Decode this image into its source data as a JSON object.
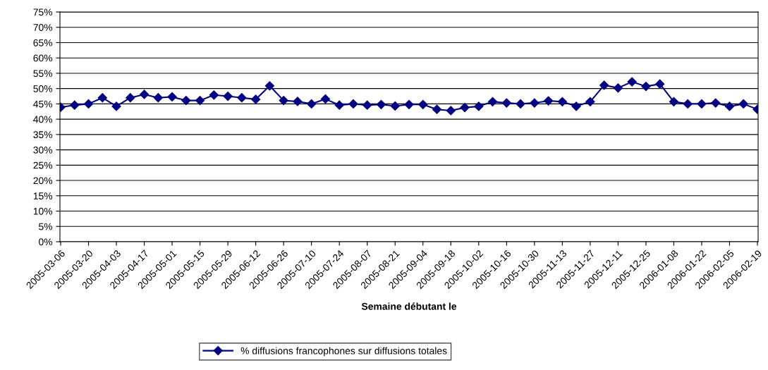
{
  "chart_data": {
    "type": "line",
    "xlabel": "Semaine débutant le",
    "categories": [
      "2005-03-06",
      null,
      "2005-03-20",
      null,
      "2005-04-03",
      null,
      "2005-04-17",
      null,
      "2005-05-01",
      null,
      "2005-05-15",
      null,
      "2005-05-29",
      null,
      "2005-06-12",
      null,
      "2005-06-26",
      null,
      "2005-07-10",
      null,
      "2005-07-24",
      null,
      "2005-08-07",
      null,
      "2005-08-21",
      null,
      "2005-09-04",
      null,
      "2005-09-18",
      null,
      "2005-10-02",
      null,
      "2005-10-16",
      null,
      "2005-10-30",
      null,
      "2005-11-13",
      null,
      "2005-11-27",
      null,
      "2005-12-11",
      null,
      "2005-12-25",
      null,
      "2006-01-08",
      null,
      "2006-01-22",
      null,
      "2006-02-05",
      null,
      "2006-02-19"
    ],
    "series": [
      {
        "name": "% diffusions francophones sur diffusions totales",
        "color": "#000080",
        "values": [
          43.9,
          44.6,
          45.0,
          47.0,
          44.2,
          47.0,
          48.1,
          47.0,
          47.3,
          46.1,
          46.1,
          47.9,
          47.5,
          47.0,
          46.5,
          50.9,
          46.1,
          45.8,
          45.0,
          46.6,
          44.6,
          45.0,
          44.6,
          44.8,
          44.3,
          44.8,
          44.8,
          43.2,
          42.8,
          43.8,
          44.2,
          45.7,
          45.3,
          45.0,
          45.3,
          46.0,
          45.7,
          44.2,
          45.7,
          51.1,
          50.2,
          52.2,
          50.7,
          51.5,
          45.7,
          45.0,
          45.0,
          45.3,
          44.2,
          45.0,
          43.2
        ]
      }
    ],
    "ylim": [
      0,
      75
    ],
    "yticks": [
      {
        "value": 0,
        "label": "0%"
      },
      {
        "value": 5,
        "label": "5%"
      },
      {
        "value": 10,
        "label": "10%"
      },
      {
        "value": 15,
        "label": "15%"
      },
      {
        "value": 20,
        "label": "20%"
      },
      {
        "value": 25,
        "label": "25%"
      },
      {
        "value": 30,
        "label": "30%"
      },
      {
        "value": 35,
        "label": "35%"
      },
      {
        "value": 40,
        "label": "40%"
      },
      {
        "value": 45,
        "label": "45%"
      },
      {
        "value": 50,
        "label": "50%"
      },
      {
        "value": 55,
        "label": "55%"
      },
      {
        "value": 60,
        "label": "60%"
      },
      {
        "value": 65,
        "label": "65%"
      },
      {
        "value": 70,
        "label": "70%"
      },
      {
        "value": 75,
        "label": "75%"
      }
    ],
    "grid": "y",
    "legend": "bottom",
    "marker": "diamond",
    "line_style": "solid"
  }
}
